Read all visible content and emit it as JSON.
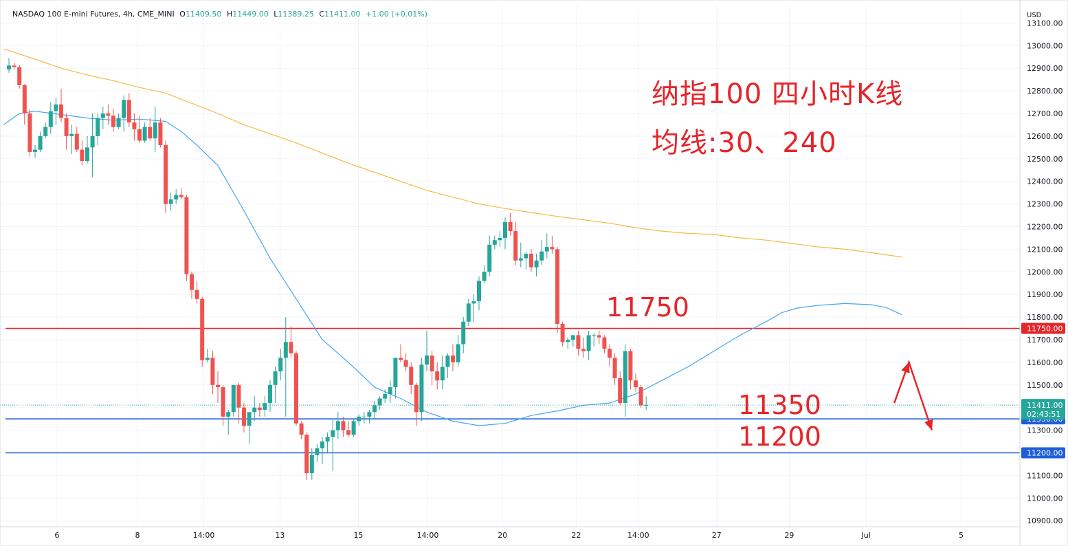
{
  "legend": {
    "symbol": "NASDAQ 100 E-mini Futures, 4h, CME_MINI",
    "o_label": "O",
    "o_value": "11409.50",
    "h_label": "H",
    "h_value": "11449.00",
    "l_label": "L",
    "l_value": "11389.25",
    "c_label": "C",
    "c_value": "11411.00",
    "change": "+1.00 (+0.01%)"
  },
  "annotations": {
    "title": "纳指100 四小时K线",
    "subtitle": "均线:30、240",
    "level_11750": "11750",
    "level_11350": "11350",
    "level_11200": "11200"
  },
  "colors": {
    "up": "#26a69a",
    "down": "#ef5350",
    "ma30": "#42a5f5",
    "ma240": "#f5b942",
    "resistance_line": "#e5252a",
    "support_line": "#1e5fd8",
    "arrow": "#e5252a"
  },
  "chart_data": {
    "type": "candlestick",
    "interval": "4h",
    "currency_label": "USD",
    "ylim": [
      10870,
      13140
    ],
    "y_ticks": [
      13100,
      13000,
      12900,
      12800,
      12700,
      12600,
      12500,
      12400,
      12300,
      12200,
      12100,
      12000,
      11900,
      11800,
      11700,
      11600,
      11500,
      11400,
      11300,
      11200,
      11100,
      11000,
      10900
    ],
    "x_ticks": [
      "6",
      "8",
      "14:00",
      "13",
      "15",
      "14:00",
      "20",
      "22",
      "14:00",
      "27",
      "29",
      "Jul",
      "5"
    ],
    "x_tick_index": [
      9.2,
      24.6,
      37.3,
      51.9,
      66.9,
      80.2,
      94.5,
      108.6,
      120.5,
      135.5,
      149.4,
      164.1,
      182.3
    ],
    "horizontal_lines": [
      {
        "value": 11750,
        "label": "11750.00",
        "color": "resistance"
      },
      {
        "value": 11350,
        "label": "11350.00",
        "color": "support"
      },
      {
        "value": 11200,
        "label": "11200.00",
        "color": "support"
      }
    ],
    "last_price": {
      "value": 11411,
      "label": "11411.00",
      "countdown": "02:43:51"
    },
    "candles": [
      [
        12895,
        12945,
        12880,
        12912
      ],
      [
        12912,
        12925,
        12895,
        12905
      ],
      [
        12905,
        12915,
        12810,
        12825
      ],
      [
        12825,
        12830,
        12650,
        12700
      ],
      [
        12700,
        12720,
        12510,
        12530
      ],
      [
        12530,
        12560,
        12505,
        12540
      ],
      [
        12540,
        12620,
        12530,
        12600
      ],
      [
        12600,
        12660,
        12590,
        12640
      ],
      [
        12640,
        12750,
        12610,
        12710
      ],
      [
        12710,
        12770,
        12650,
        12740
      ],
      [
        12740,
        12810,
        12660,
        12680
      ],
      [
        12680,
        12700,
        12540,
        12600
      ],
      [
        12600,
        12650,
        12520,
        12610
      ],
      [
        12610,
        12640,
        12530,
        12540
      ],
      [
        12540,
        12580,
        12470,
        12490
      ],
      [
        12490,
        12600,
        12480,
        12550
      ],
      [
        12550,
        12700,
        12420,
        12600
      ],
      [
        12600,
        12700,
        12560,
        12680
      ],
      [
        12680,
        12730,
        12630,
        12700
      ],
      [
        12700,
        12740,
        12650,
        12690
      ],
      [
        12690,
        12720,
        12620,
        12640
      ],
      [
        12640,
        12700,
        12630,
        12680
      ],
      [
        12680,
        12780,
        12620,
        12760
      ],
      [
        12760,
        12790,
        12640,
        12660
      ],
      [
        12660,
        12700,
        12580,
        12630
      ],
      [
        12630,
        12690,
        12570,
        12580
      ],
      [
        12580,
        12660,
        12570,
        12640
      ],
      [
        12640,
        12680,
        12580,
        12590
      ],
      [
        12590,
        12730,
        12530,
        12660
      ],
      [
        12660,
        12680,
        12550,
        12560
      ],
      [
        12560,
        12580,
        12260,
        12300
      ],
      [
        12300,
        12350,
        12270,
        12320
      ],
      [
        12320,
        12365,
        12300,
        12340
      ],
      [
        12340,
        12370,
        12320,
        12330
      ],
      [
        12330,
        12340,
        11960,
        11990
      ],
      [
        11990,
        12000,
        11880,
        11920
      ],
      [
        11920,
        11960,
        11860,
        11880
      ],
      [
        11880,
        11890,
        11580,
        11610
      ],
      [
        11610,
        11660,
        11600,
        11620
      ],
      [
        11620,
        11650,
        11460,
        11500
      ],
      [
        11500,
        11560,
        11420,
        11490
      ],
      [
        11490,
        11500,
        11320,
        11360
      ],
      [
        11360,
        11390,
        11280,
        11380
      ],
      [
        11380,
        11500,
        11360,
        11500
      ],
      [
        11500,
        11510,
        11330,
        11400
      ],
      [
        11400,
        11420,
        11290,
        11320
      ],
      [
        11320,
        11360,
        11240,
        11380
      ],
      [
        11380,
        11450,
        11340,
        11400
      ],
      [
        11400,
        11420,
        11360,
        11390
      ],
      [
        11390,
        11450,
        11360,
        11420
      ],
      [
        11420,
        11520,
        11380,
        11500
      ],
      [
        11500,
        11580,
        11420,
        11560
      ],
      [
        11560,
        11660,
        11520,
        11620
      ],
      [
        11620,
        11800,
        11360,
        11690
      ],
      [
        11690,
        11760,
        11620,
        11640
      ],
      [
        11640,
        11650,
        11320,
        11330
      ],
      [
        11330,
        11340,
        11260,
        11280
      ],
      [
        11280,
        11290,
        11080,
        11110
      ],
      [
        11110,
        11220,
        11080,
        11190
      ],
      [
        11190,
        11240,
        11160,
        11220
      ],
      [
        11220,
        11270,
        11150,
        11250
      ],
      [
        11250,
        11290,
        11200,
        11270
      ],
      [
        11270,
        11350,
        11120,
        11300
      ],
      [
        11300,
        11380,
        11260,
        11340
      ],
      [
        11340,
        11360,
        11270,
        11300
      ],
      [
        11300,
        11340,
        11270,
        11280
      ],
      [
        11280,
        11350,
        11270,
        11340
      ],
      [
        11340,
        11370,
        11320,
        11360
      ],
      [
        11360,
        11380,
        11330,
        11360
      ],
      [
        11360,
        11390,
        11330,
        11380
      ],
      [
        11380,
        11430,
        11350,
        11410
      ],
      [
        11410,
        11450,
        11390,
        11440
      ],
      [
        11440,
        11480,
        11420,
        11460
      ],
      [
        11460,
        11520,
        11420,
        11490
      ],
      [
        11490,
        11610,
        11440,
        11620
      ],
      [
        11620,
        11680,
        11600,
        11610
      ],
      [
        11610,
        11640,
        11560,
        11580
      ],
      [
        11580,
        11600,
        11460,
        11500
      ],
      [
        11500,
        11510,
        11320,
        11380
      ],
      [
        11380,
        11620,
        11340,
        11590
      ],
      [
        11590,
        11740,
        11560,
        11630
      ],
      [
        11630,
        11650,
        11500,
        11560
      ],
      [
        11560,
        11600,
        11480,
        11520
      ],
      [
        11520,
        11630,
        11480,
        11580
      ],
      [
        11580,
        11640,
        11530,
        11630
      ],
      [
        11630,
        11680,
        11560,
        11600
      ],
      [
        11600,
        11720,
        11580,
        11680
      ],
      [
        11680,
        11800,
        11640,
        11780
      ],
      [
        11780,
        11880,
        11760,
        11860
      ],
      [
        11860,
        11900,
        11780,
        11870
      ],
      [
        11870,
        11980,
        11830,
        11960
      ],
      [
        11960,
        12030,
        11950,
        12000
      ],
      [
        12000,
        12160,
        11980,
        12120
      ],
      [
        12120,
        12160,
        12100,
        12140
      ],
      [
        12140,
        12180,
        12110,
        12150
      ],
      [
        12150,
        12240,
        12100,
        12220
      ],
      [
        12220,
        12260,
        12160,
        12180
      ],
      [
        12180,
        12220,
        12030,
        12050
      ],
      [
        12050,
        12130,
        12020,
        12060
      ],
      [
        12060,
        12090,
        12010,
        12080
      ],
      [
        12080,
        12100,
        12000,
        12020
      ],
      [
        12020,
        12080,
        11980,
        12050
      ],
      [
        12050,
        12140,
        12030,
        12090
      ],
      [
        12090,
        12170,
        12060,
        12110
      ],
      [
        12110,
        12160,
        12080,
        12100
      ],
      [
        12100,
        12110,
        11730,
        11770
      ],
      [
        11770,
        11780,
        11670,
        11690
      ],
      [
        11690,
        11710,
        11660,
        11700
      ],
      [
        11700,
        11710,
        11670,
        11720
      ],
      [
        11720,
        11740,
        11630,
        11660
      ],
      [
        11660,
        11710,
        11620,
        11650
      ],
      [
        11650,
        11740,
        11610,
        11720
      ],
      [
        11720,
        11730,
        11670,
        11720
      ],
      [
        11720,
        11740,
        11680,
        11710
      ],
      [
        11710,
        11720,
        11640,
        11660
      ],
      [
        11660,
        11680,
        11580,
        11620
      ],
      [
        11620,
        11640,
        11500,
        11530
      ],
      [
        11530,
        11560,
        11410,
        11420
      ],
      [
        11420,
        11680,
        11360,
        11650
      ],
      [
        11650,
        11660,
        11480,
        11520
      ],
      [
        11520,
        11550,
        11470,
        11490
      ],
      [
        11490,
        11500,
        11400,
        11410
      ],
      [
        11409.5,
        11449,
        11389.25,
        11411
      ]
    ],
    "ma30": [
      [
        -1,
        12650
      ],
      [
        2,
        12700
      ],
      [
        5,
        12710
      ],
      [
        10,
        12695
      ],
      [
        15,
        12680
      ],
      [
        20,
        12670
      ],
      [
        25,
        12675
      ],
      [
        30,
        12665
      ],
      [
        33,
        12620
      ],
      [
        36,
        12560
      ],
      [
        40,
        12470
      ],
      [
        45,
        12270
      ],
      [
        50,
        12060
      ],
      [
        55,
        11880
      ],
      [
        60,
        11700
      ],
      [
        65,
        11600
      ],
      [
        70,
        11490
      ],
      [
        75,
        11440
      ],
      [
        80,
        11380
      ],
      [
        85,
        11340
      ],
      [
        90,
        11320
      ],
      [
        95,
        11330
      ],
      [
        100,
        11365
      ],
      [
        105,
        11385
      ],
      [
        110,
        11410
      ],
      [
        115,
        11420
      ],
      [
        120,
        11460
      ],
      [
        125,
        11520
      ],
      [
        130,
        11580
      ],
      [
        135,
        11650
      ],
      [
        140,
        11720
      ],
      [
        145,
        11780
      ],
      [
        148,
        11820
      ],
      [
        151,
        11840
      ],
      [
        155,
        11852
      ],
      [
        160,
        11860
      ],
      [
        165,
        11855
      ],
      [
        168,
        11842
      ],
      [
        171,
        11810
      ]
    ],
    "ma240": [
      [
        -1,
        12985
      ],
      [
        5,
        12940
      ],
      [
        10,
        12900
      ],
      [
        15,
        12870
      ],
      [
        20,
        12845
      ],
      [
        25,
        12815
      ],
      [
        30,
        12790
      ],
      [
        35,
        12745
      ],
      [
        40,
        12700
      ],
      [
        45,
        12650
      ],
      [
        50,
        12610
      ],
      [
        55,
        12570
      ],
      [
        60,
        12525
      ],
      [
        65,
        12480
      ],
      [
        70,
        12440
      ],
      [
        75,
        12400
      ],
      [
        80,
        12360
      ],
      [
        85,
        12330
      ],
      [
        90,
        12300
      ],
      [
        95,
        12280
      ],
      [
        100,
        12262
      ],
      [
        105,
        12245
      ],
      [
        110,
        12230
      ],
      [
        115,
        12215
      ],
      [
        120,
        12195
      ],
      [
        125,
        12180
      ],
      [
        130,
        12170
      ],
      [
        135,
        12165
      ],
      [
        140,
        12150
      ],
      [
        145,
        12140
      ],
      [
        150,
        12125
      ],
      [
        155,
        12110
      ],
      [
        160,
        12100
      ],
      [
        165,
        12085
      ],
      [
        171,
        12065
      ]
    ],
    "arrow_path": [
      [
        169.5,
        11420
      ],
      [
        172.3,
        11600
      ],
      [
        176.7,
        11300
      ]
    ]
  }
}
